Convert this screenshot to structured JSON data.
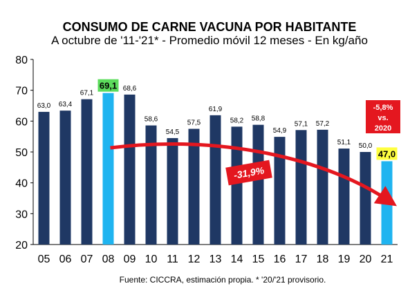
{
  "chart_data": {
    "type": "bar",
    "title": "CONSUMO DE CARNE VACUNA POR HABITANTE",
    "subtitle": "A octubre de '11-'21* - Promedio móvil 12 meses -  En kg/año",
    "categories": [
      "05",
      "06",
      "07",
      "08",
      "09",
      "10",
      "11",
      "12",
      "13",
      "14",
      "15",
      "16",
      "17",
      "18",
      "19",
      "20",
      "21"
    ],
    "values": [
      63.0,
      63.4,
      67.1,
      69.1,
      68.6,
      58.6,
      54.5,
      57.5,
      61.9,
      58.2,
      58.8,
      54.9,
      57.1,
      57.2,
      51.1,
      50.0,
      47.0
    ],
    "labels": [
      "63,0",
      "63,4",
      "67,1",
      "69,1",
      "68,6",
      "58,6",
      "54,5",
      "57,5",
      "61,9",
      "58,2",
      "58,8",
      "54,9",
      "57,1",
      "57,2",
      "51,1",
      "50,0",
      "47,0"
    ],
    "highlight_indices": [
      3,
      16
    ],
    "ylim": [
      20,
      80
    ],
    "yticks": [
      20,
      30,
      40,
      50,
      60,
      70,
      80
    ],
    "xlabel": "",
    "ylabel": "",
    "grid": false,
    "trend_label": "-31,9%",
    "trend_from_index": 3,
    "trend_to_index": 16,
    "note_lines": [
      "-5,8%",
      "vs.",
      "2020"
    ]
  },
  "source": "Fuente: CICCRA, estimación propia. * '20/'21 provisorio.",
  "colors": {
    "bar": "#1f3864",
    "bar_highlight": "#1fb4f0",
    "label_bg_max": "#5cdc5c",
    "label_bg_last": "#ffff40",
    "trend": "#e4171f",
    "note_bg": "#e4171f"
  }
}
